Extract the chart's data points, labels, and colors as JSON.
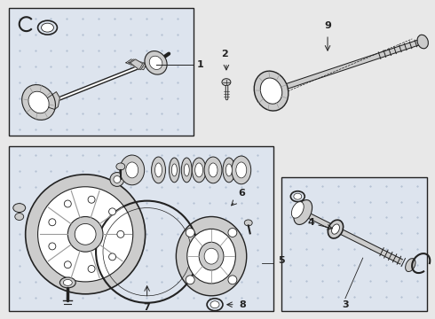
{
  "bg_color": "#e8e8e8",
  "white": "#ffffff",
  "dark": "#222222",
  "gray": "#999999",
  "light_gray": "#cccccc",
  "mid_gray": "#aaaaaa",
  "box_bg": "#dde4ee"
}
